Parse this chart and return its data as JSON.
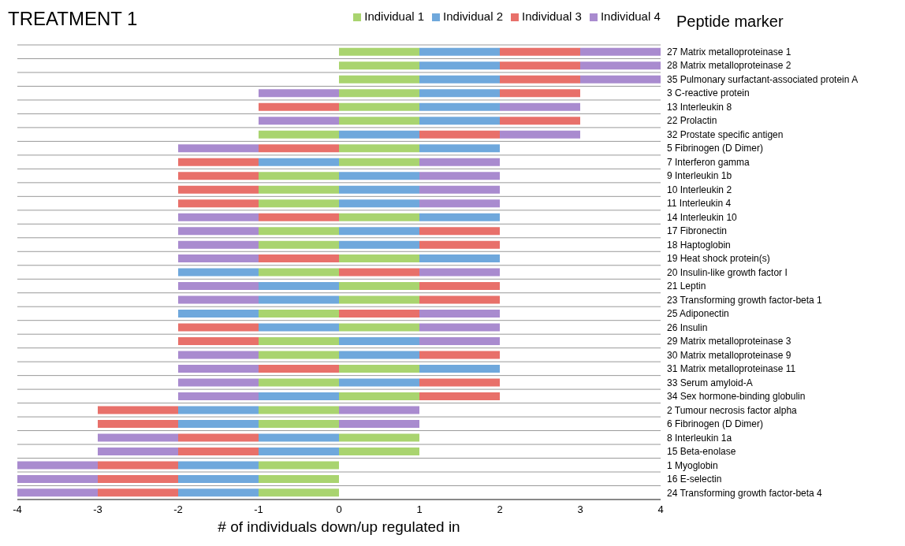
{
  "chart_data": {
    "type": "bar",
    "orientation": "horizontal",
    "stacked": true,
    "title": "TREATMENT 1",
    "xlabel": "# of individuals down/up regulated in",
    "ylabel": "Peptide marker",
    "categories": [
      "27 Matrix metalloproteinase 1",
      "28 Matrix metalloproteinase 2",
      "35 Pulmonary surfactant-associated protein A",
      "3 C-reactive protein",
      "13 Interleukin 8",
      "22 Prolactin",
      "32 Prostate specific antigen",
      "5 Fibrinogen (D Dimer)",
      "7 Interferon gamma",
      "9 Interleukin 1b",
      "10 Interleukin 2",
      "11 Interleukin 4",
      "14 Interleukin 10",
      "17 Fibronectin",
      "18 Haptoglobin",
      "19 Heat shock protein(s)",
      "20 Insulin-like growth factor I",
      "21 Leptin",
      "23 Transforming growth factor-beta 1",
      "25 Adiponectin",
      "26 Insulin",
      "29 Matrix metalloproteinase 3",
      "30 Matrix metalloproteinase 9",
      "31 Matrix metalloproteinase 11",
      "33 Serum amyloid-A",
      "34 Sex hormone-binding globulin",
      "2 Tumour necrosis factor alpha",
      "6 Fibrinogen (D Dimer)",
      "8 Interleukin 1a",
      "15 Beta-enolase",
      "1 Myoglobin",
      "16 E-selectin",
      "24 Transforming growth factor-beta 4"
    ],
    "series": [
      {
        "name": "Individual 1",
        "color": "#a9d46f",
        "values": [
          1,
          1,
          1,
          1,
          1,
          1,
          -1,
          1,
          1,
          -1,
          -1,
          -1,
          1,
          -1,
          -1,
          1,
          -1,
          1,
          1,
          -1,
          1,
          -1,
          -1,
          1,
          -1,
          1,
          -1,
          -1,
          1,
          1,
          -1,
          -1,
          -1
        ]
      },
      {
        "name": "Individual 2",
        "color": "#6fa8dc",
        "values": [
          1,
          1,
          1,
          1,
          1,
          1,
          1,
          1,
          -1,
          1,
          1,
          1,
          1,
          1,
          1,
          1,
          -1,
          -1,
          -1,
          -1,
          -1,
          1,
          1,
          1,
          1,
          -1,
          -1,
          -1,
          -1,
          -1,
          -1,
          -1,
          -1
        ]
      },
      {
        "name": "Individual 3",
        "color": "#e8706a",
        "values": [
          1,
          1,
          1,
          1,
          -1,
          1,
          1,
          -1,
          -1,
          -1,
          -1,
          -1,
          -1,
          1,
          1,
          -1,
          1,
          1,
          1,
          1,
          -1,
          -1,
          1,
          -1,
          1,
          1,
          -1,
          -1,
          -1,
          -1,
          -1,
          -1,
          -1
        ]
      },
      {
        "name": "Individual 4",
        "color": "#a98bcf",
        "values": [
          1,
          1,
          1,
          -1,
          1,
          -1,
          1,
          -1,
          1,
          1,
          1,
          1,
          -1,
          -1,
          -1,
          -1,
          1,
          -1,
          -1,
          1,
          1,
          1,
          -1,
          -1,
          -1,
          -1,
          1,
          1,
          -1,
          -1,
          -1,
          -1,
          -1
        ]
      }
    ],
    "xlim": [
      -4,
      4
    ],
    "xticks": [
      -4,
      -3,
      -2,
      -1,
      0,
      1,
      2,
      3,
      4
    ],
    "grid": "y",
    "legend": "top"
  }
}
